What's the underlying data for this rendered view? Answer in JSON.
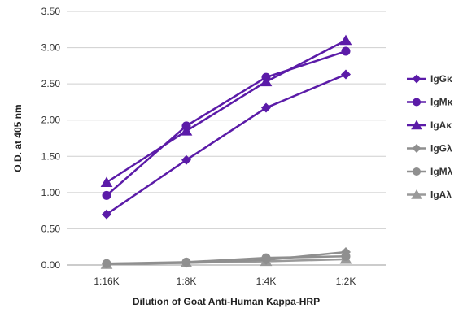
{
  "chart_data": {
    "type": "line",
    "title": "",
    "xlabel": "Dilution of Goat Anti-Human Kappa-HRP",
    "ylabel": "O.D. at 405 nm",
    "categories": [
      "1:16K",
      "1:8K",
      "1:4K",
      "1:2K"
    ],
    "ylim": [
      0,
      3.5
    ],
    "yticks": [
      "0.00",
      "0.50",
      "1.00",
      "1.50",
      "2.00",
      "2.50",
      "3.00",
      "3.50"
    ],
    "grid": "horizontal",
    "legend_position": "right",
    "series": [
      {
        "name": "IgGκ",
        "values": [
          0.7,
          1.45,
          2.17,
          2.63
        ],
        "color": "#5b1ba8",
        "marker": "diamond"
      },
      {
        "name": "IgMκ",
        "values": [
          0.96,
          1.92,
          2.59,
          2.95
        ],
        "color": "#5b1ba8",
        "marker": "circle"
      },
      {
        "name": "IgAκ",
        "values": [
          1.14,
          1.85,
          2.53,
          3.1
        ],
        "color": "#5b1ba8",
        "marker": "triangle"
      },
      {
        "name": "IgGλ",
        "values": [
          0.02,
          0.03,
          0.07,
          0.18
        ],
        "color": "#8f8f8f",
        "marker": "diamond"
      },
      {
        "name": "IgMλ",
        "values": [
          0.02,
          0.04,
          0.1,
          0.12
        ],
        "color": "#8f8f8f",
        "marker": "circle"
      },
      {
        "name": "IgAλ",
        "values": [
          0.01,
          0.03,
          0.05,
          0.08
        ],
        "color": "#9a9a9a",
        "marker": "triangle"
      }
    ]
  }
}
